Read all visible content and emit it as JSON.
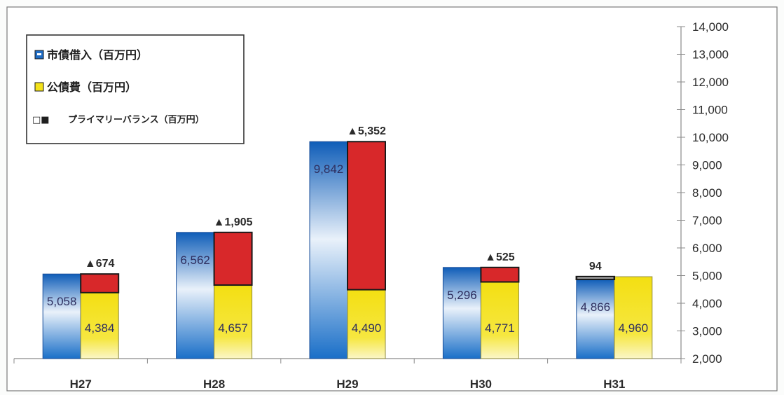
{
  "chart_data": {
    "type": "bar",
    "categories": [
      "H27",
      "H28",
      "H29",
      "H30",
      "H31"
    ],
    "series": [
      {
        "name": "市債借入（百万円）",
        "values": [
          5058,
          6562,
          9842,
          5296,
          4866
        ],
        "color": "#1f6cc4"
      },
      {
        "name": "公債費（百万円）",
        "values": [
          4384,
          4657,
          4490,
          4771,
          4960
        ],
        "color": "#f4e21a"
      },
      {
        "name": "プライマリーバランス（百万円）",
        "values": [
          -674,
          -1905,
          -5352,
          -525,
          94
        ],
        "color": "#d8282a"
      }
    ],
    "value_labels": {
      "borrowing": [
        "5,058",
        "6,562",
        "9,842",
        "5,296",
        "4,866"
      ],
      "debt_service": [
        "4,384",
        "4,657",
        "4,490",
        "4,771",
        "4,960"
      ],
      "primary_balance": [
        "▲674",
        "▲1,905",
        "▲5,352",
        "▲525",
        "94"
      ]
    },
    "legend_markers": {
      "primary_balance": "□■"
    },
    "yaxis": {
      "ticks": [
        "2,000",
        "3,000",
        "4,000",
        "5,000",
        "6,000",
        "7,000",
        "8,000",
        "9,000",
        "10,000",
        "11,000",
        "12,000",
        "13,000",
        "14,000"
      ],
      "tick_values": [
        2000,
        3000,
        4000,
        5000,
        6000,
        7000,
        8000,
        9000,
        10000,
        11000,
        12000,
        13000,
        14000
      ],
      "side": "right"
    },
    "ylim": [
      2000,
      14000
    ],
    "legend_position": "top-left",
    "grid": false
  }
}
